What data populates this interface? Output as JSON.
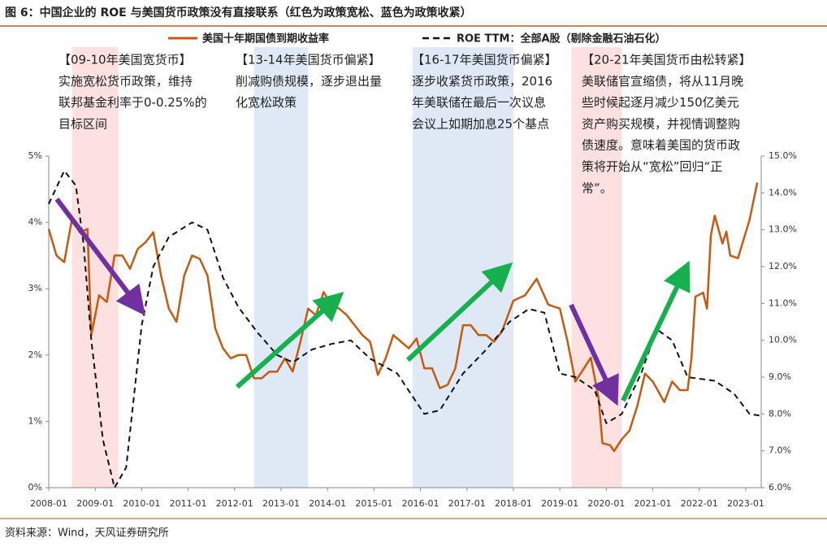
{
  "title": "图 6：中国企业的 ROE 与美国货币政策没有直接联系（红色为政策宽松、蓝色为政策收紧）",
  "source": "资料来源：Wind，天风证券研究所",
  "annotations": [
    {
      "lines": [
        "【09-10年美国宽货币】",
        "实施宽松货币政策，维持",
        "联邦基金利率于0-0.25%的",
        "目标区间"
      ]
    },
    {
      "lines": [
        "【13-14年美国货币偏紧】",
        "削减购债规模，逐步退出量",
        "化宽松政策"
      ]
    },
    {
      "lines": [
        "【16-17年美国货币偏紧】",
        "逐步收紧货币政策，2016",
        "年美联储在最后一次议息",
        "会议上如期加息25个基点"
      ]
    },
    {
      "lines": [
        "【20-21年美国货币由松转紧】",
        "美联储官宣缩债，将从11月晚",
        "些时候起逐月减少150亿美元",
        "资产购买规模，并视情调整购",
        "债速度。意味着美国的货币政",
        "策将开始从“宽松”回归“正",
        "常”。"
      ]
    }
  ],
  "chart_data": {
    "type": "line",
    "xlim": [
      "2008-01",
      "2023-05"
    ],
    "xticks": [
      "2008-01",
      "2009-01",
      "2010-01",
      "2011-01",
      "2012-01",
      "2013-01",
      "2014-01",
      "2015-01",
      "2016-01",
      "2017-01",
      "2018-01",
      "2019-01",
      "2020-01",
      "2021-01",
      "2022-01",
      "2023-01"
    ],
    "ylim": [
      0,
      5
    ],
    "yticks": [
      {
        "value": 0,
        "label": "0%"
      },
      {
        "value": 1,
        "label": "1%"
      },
      {
        "value": 2,
        "label": "2%"
      },
      {
        "value": 3,
        "label": "3%"
      },
      {
        "value": 4,
        "label": "4%"
      },
      {
        "value": 5,
        "label": "5%"
      }
    ],
    "y2lim": [
      6,
      15
    ],
    "y2ticks": [
      {
        "value": 6,
        "label": "6.0%"
      },
      {
        "value": 7,
        "label": "7.0%"
      },
      {
        "value": 8,
        "label": "8.0%"
      },
      {
        "value": 9,
        "label": "9.0%"
      },
      {
        "value": 10,
        "label": "10.0%"
      },
      {
        "value": 11,
        "label": "11.0%"
      },
      {
        "value": 12,
        "label": "12.0%"
      },
      {
        "value": 13,
        "label": "13.0%"
      },
      {
        "value": 14,
        "label": "14.0%"
      },
      {
        "value": 15,
        "label": "15.0%"
      }
    ],
    "bands": [
      {
        "start": "2008-07",
        "end": "2009-07",
        "color": "#fde1e1"
      },
      {
        "start": "2012-06",
        "end": "2013-08",
        "color": "#dfe9f6"
      },
      {
        "start": "2015-11",
        "end": "2018-01",
        "color": "#dfe9f6"
      },
      {
        "start": "2019-04",
        "end": "2020-05",
        "color": "#fde1e1"
      }
    ],
    "series": [
      {
        "name": "美国十年期国债到期收益率",
        "color": "#c55a11",
        "dash": false,
        "x": [
          "2008-01",
          "2008-03",
          "2008-05",
          "2008-07",
          "2008-09",
          "2008-11",
          "2008-12",
          "2009-02",
          "2009-04",
          "2009-06",
          "2009-08",
          "2009-10",
          "2009-12",
          "2010-02",
          "2010-04",
          "2010-06",
          "2010-08",
          "2010-10",
          "2010-12",
          "2011-02",
          "2011-04",
          "2011-06",
          "2011-08",
          "2011-10",
          "2011-12",
          "2012-02",
          "2012-04",
          "2012-06",
          "2012-08",
          "2012-10",
          "2012-12",
          "2013-02",
          "2013-04",
          "2013-06",
          "2013-08",
          "2013-10",
          "2013-12",
          "2014-02",
          "2014-04",
          "2014-06",
          "2014-08",
          "2014-10",
          "2014-12",
          "2015-02",
          "2015-04",
          "2015-06",
          "2015-08",
          "2015-10",
          "2015-12",
          "2016-02",
          "2016-04",
          "2016-06",
          "2016-08",
          "2016-10",
          "2016-12",
          "2017-02",
          "2017-04",
          "2017-06",
          "2017-08",
          "2017-10",
          "2018-01",
          "2018-04",
          "2018-07",
          "2018-10",
          "2019-01",
          "2019-03",
          "2019-05",
          "2019-07",
          "2019-09",
          "2019-11",
          "2019-12",
          "2020-02",
          "2020-03",
          "2020-05",
          "2020-07",
          "2020-09",
          "2020-11",
          "2021-01",
          "2021-04",
          "2021-06",
          "2021-08",
          "2021-10",
          "2021-11",
          "2021-12",
          "2022-02",
          "2022-03",
          "2022-04",
          "2022-05",
          "2022-07",
          "2022-08",
          "2022-09",
          "2022-11",
          "2023-02",
          "2023-04"
        ],
        "values": [
          3.9,
          3.5,
          3.4,
          4.05,
          3.85,
          3.9,
          2.3,
          2.9,
          2.8,
          3.5,
          3.5,
          3.3,
          3.6,
          3.7,
          3.85,
          3.2,
          2.7,
          2.5,
          3.2,
          3.5,
          3.45,
          3.2,
          2.4,
          2.1,
          1.95,
          2.0,
          2.0,
          1.65,
          1.65,
          1.75,
          1.75,
          1.95,
          1.75,
          2.2,
          2.7,
          2.6,
          2.95,
          2.75,
          2.7,
          2.6,
          2.45,
          2.3,
          2.2,
          1.7,
          1.95,
          2.3,
          2.2,
          2.1,
          2.25,
          1.8,
          1.8,
          1.5,
          1.55,
          1.8,
          2.45,
          2.45,
          2.3,
          2.3,
          2.2,
          2.35,
          2.82,
          2.9,
          3.15,
          2.76,
          2.7,
          2.2,
          1.6,
          1.78,
          1.96,
          1.35,
          0.67,
          0.64,
          0.55,
          0.73,
          0.86,
          1.23,
          1.72,
          1.6,
          1.29,
          1.6,
          1.47,
          1.47,
          1.96,
          2.88,
          2.94,
          2.7,
          3.8,
          4.1,
          3.68,
          3.86,
          3.5,
          3.46,
          4.04,
          4.6
        ]
      },
      {
        "name": "ROE TTM：全部A股（剔除金融石油石化）",
        "color": "#111111",
        "dash": true,
        "axis": "y2",
        "x": [
          "2008-01",
          "2008-05",
          "2008-08",
          "2008-10",
          "2008-12",
          "2009-03",
          "2009-06",
          "2009-09",
          "2010-01",
          "2010-04",
          "2010-08",
          "2011-02",
          "2011-06",
          "2011-10",
          "2012-02",
          "2012-07",
          "2012-12",
          "2013-04",
          "2013-09",
          "2014-02",
          "2014-07",
          "2014-12",
          "2015-07",
          "2016-02",
          "2016-06",
          "2016-12",
          "2017-06",
          "2017-12",
          "2018-05",
          "2018-09",
          "2019-01",
          "2019-05",
          "2019-10",
          "2020-01",
          "2020-05",
          "2020-10",
          "2021-02",
          "2021-06",
          "2021-10",
          "2022-05",
          "2022-10",
          "2023-02",
          "2023-05"
        ],
        "values": [
          13.7,
          14.6,
          14.2,
          12.6,
          10.0,
          7.3,
          6.0,
          6.55,
          10.4,
          12.0,
          12.8,
          13.2,
          13.0,
          11.7,
          10.9,
          10.2,
          9.6,
          9.4,
          9.75,
          9.9,
          10.0,
          9.5,
          9.1,
          8.0,
          8.1,
          9.1,
          9.75,
          10.5,
          10.85,
          10.75,
          9.1,
          9.0,
          8.65,
          7.75,
          8.0,
          9.1,
          10.3,
          10.0,
          9.0,
          8.9,
          8.55,
          8.0,
          7.95
        ]
      }
    ]
  }
}
